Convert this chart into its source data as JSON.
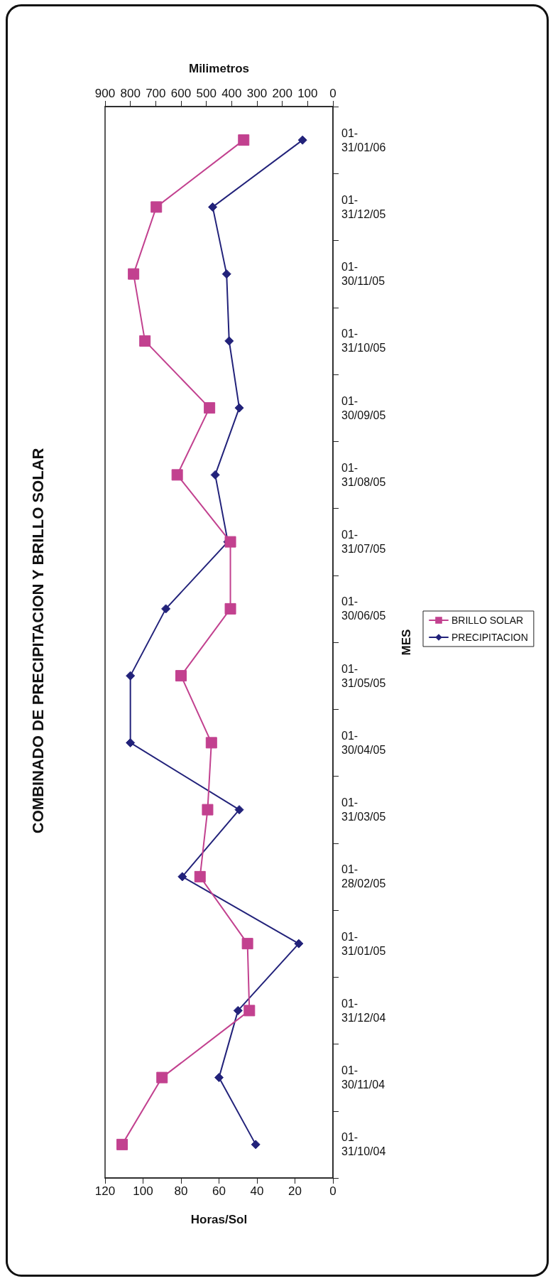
{
  "chart_data": {
    "type": "line",
    "orientation": "horizontal",
    "title": "COMBINADO DE PRECIPITACION Y BRILLO SOLAR",
    "xlabel": "Horas/Sol",
    "x2label": "Milimetros",
    "ylabel": "MES",
    "categories": [
      "01-31/01/06",
      "01-31/12/05",
      "01-30/11/05",
      "01-31/10/05",
      "01-30/09/05",
      "01-31/08/05",
      "01-31/07/05",
      "01-30/06/05",
      "01-31/05/05",
      "01-30/04/05",
      "01-31/03/05",
      "01-28/02/05",
      "01-31/01/05",
      "01-31/12/04",
      "01-30/11/04",
      "01-31/10/04"
    ],
    "series": [
      {
        "name": "BRILLO SOLAR",
        "color": "#c2418f",
        "marker": "square",
        "values": [
          47,
          93,
          105,
          99,
          65,
          82,
          54,
          54,
          80,
          64,
          66,
          70,
          45,
          44,
          90,
          111
        ]
      },
      {
        "name": "PRECIPITACION",
        "color": "#22227a",
        "marker": "diamond",
        "axis": "x2",
        "values": [
          120,
          475,
          420,
          410,
          370,
          465,
          415,
          660,
          800,
          800,
          370,
          595,
          135,
          375,
          450,
          305
        ]
      }
    ],
    "xlim": [
      120,
      0
    ],
    "xticks": [
      120,
      100,
      80,
      60,
      40,
      20,
      0
    ],
    "x2lim": [
      900,
      0
    ],
    "x2ticks": [
      900,
      800,
      700,
      600,
      500,
      400,
      300,
      200,
      100,
      0
    ],
    "grid": false,
    "legend": "right"
  }
}
